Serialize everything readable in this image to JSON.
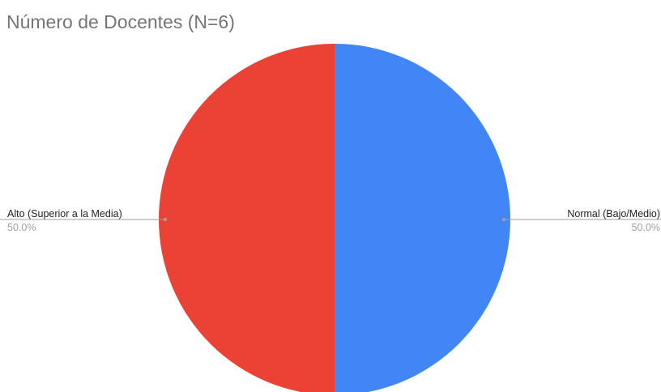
{
  "chart_data": {
    "type": "pie",
    "title": "Número de Docentes (N=6)",
    "slices": [
      {
        "label": "Normal (Bajo/Medio)",
        "value": 50.0,
        "percent_label": "50.0%",
        "color": "#4285f4"
      },
      {
        "label": "Alto (Superior a la Media)",
        "value": 50.0,
        "percent_label": "50.0%",
        "color": "#ea4335"
      }
    ],
    "legend": "none",
    "data_labels": "outside-with-leader-lines"
  }
}
